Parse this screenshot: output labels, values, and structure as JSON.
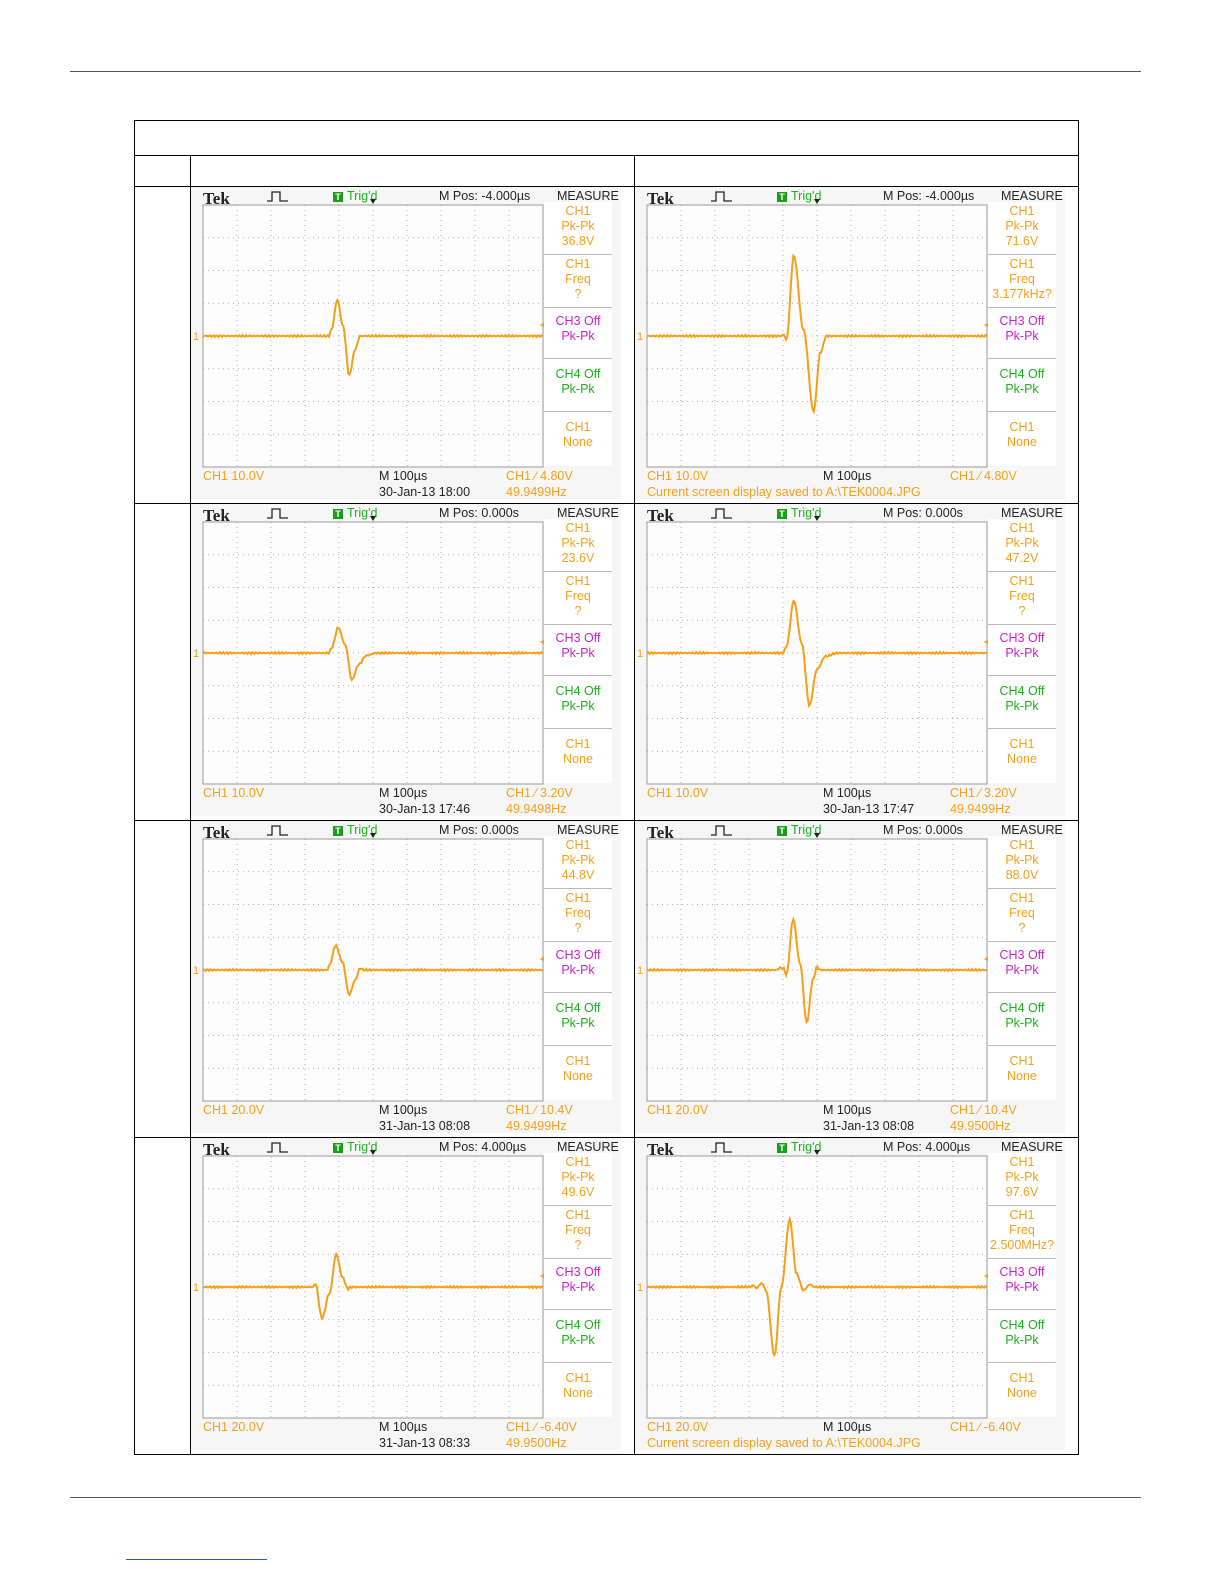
{
  "colors": {
    "trace": "#f5a01a",
    "ch3": "#cc22cc",
    "ch4": "#1ab21a",
    "grid": "#9a9a9a"
  },
  "scopes": [
    {
      "id": "1L",
      "mpos": "M Pos: -4.000µs",
      "pkpk": "36.8V",
      "freq_val": "?",
      "ch1_scale": "CH1  10.0V",
      "timebase": "M 100µs",
      "trig": "CH1 ∕ 4.80V",
      "date": "30-Jan-13 18:00",
      "hz": "49.9499Hz",
      "saved": "",
      "wave": {
        "t": [
          0,
          370,
          378,
          395,
          412,
          430,
          448,
          462,
          1000
        ],
        "v": [
          0,
          0,
          0.2,
          1.1,
          0.3,
          -1.2,
          -0.4,
          0,
          0
        ]
      }
    },
    {
      "id": "1R",
      "mpos": "M Pos: -4.000µs",
      "pkpk": "71.6V",
      "freq_val": "3.177kHz?",
      "ch1_scale": "CH1  10.0V",
      "timebase": "M 100µs",
      "trig": "CH1 ∕ 4.80V",
      "date": "",
      "hz": "",
      "saved": "Current screen display saved to A:\\TEK0004.JPG",
      "wave": {
        "t": [
          0,
          395,
          402,
          410,
          432,
          460,
          490,
          510,
          528,
          1000
        ],
        "v": [
          0,
          0,
          0.05,
          -0.12,
          2.45,
          0.2,
          -2.3,
          -0.5,
          0,
          0
        ]
      }
    },
    {
      "id": "2L",
      "mpos": "M Pos: 0.000s",
      "pkpk": "23.6V",
      "freq_val": "?",
      "ch1_scale": "CH1  10.0V",
      "timebase": "M 100µs",
      "trig": "CH1 ∕ 3.20V",
      "date": "30-Jan-13 17:46",
      "hz": "49.9498Hz",
      "saved": "",
      "wave": {
        "t": [
          0,
          370,
          378,
          398,
          418,
          438,
          458,
          480,
          510,
          1000
        ],
        "v": [
          0,
          0,
          0.15,
          0.78,
          0.25,
          -0.82,
          -0.35,
          -0.08,
          0,
          0
        ]
      }
    },
    {
      "id": "2R",
      "mpos": "M Pos: 0.000s",
      "pkpk": "47.2V",
      "freq_val": "?",
      "ch1_scale": "CH1  10.0V",
      "timebase": "M 100µs",
      "trig": "CH1 ∕ 3.20V",
      "date": "30-Jan-13 17:47",
      "hz": "49.9499Hz",
      "saved": "",
      "wave": {
        "t": [
          0,
          400,
          410,
          432,
          455,
          478,
          500,
          525,
          560,
          1000
        ],
        "v": [
          0,
          0,
          0.2,
          1.6,
          0.3,
          -1.6,
          -0.5,
          -0.1,
          0,
          0
        ]
      }
    },
    {
      "id": "3L",
      "mpos": "M Pos: 0.000s",
      "pkpk": "44.8V",
      "freq_val": "?",
      "ch1_scale": "CH1  20.0V",
      "timebase": "M 100µs",
      "trig": "CH1 ∕ 10.4V",
      "date": "31-Jan-13 08:08",
      "hz": "49.9499Hz",
      "saved": "",
      "wave": {
        "t": [
          0,
          365,
          372,
          390,
          410,
          430,
          448,
          462,
          472,
          1000
        ],
        "v": [
          0,
          0,
          0.15,
          0.75,
          0.25,
          -0.75,
          -0.3,
          0.05,
          0,
          0
        ]
      }
    },
    {
      "id": "3R",
      "mpos": "M Pos: 0.000s",
      "pkpk": "88.0V",
      "freq_val": "?",
      "ch1_scale": "CH1  20.0V",
      "timebase": "M 100µs",
      "trig": "CH1 ∕ 10.4V",
      "date": "31-Jan-13 08:08",
      "hz": "49.9500Hz",
      "saved": "",
      "wave": {
        "t": [
          0,
          380,
          392,
          402,
          410,
          430,
          450,
          470,
          488,
          500,
          510,
          1000
        ],
        "v": [
          0,
          0,
          0.07,
          0.04,
          -0.15,
          1.55,
          0.2,
          -1.6,
          -0.3,
          0.1,
          0,
          0
        ]
      }
    },
    {
      "id": "4L",
      "mpos": "M Pos: 4.000µs",
      "pkpk": "49.6V",
      "freq_val": "?",
      "ch1_scale": "CH1  20.0V",
      "timebase": "M 100µs",
      "trig": "CH1 ∕ -6.40V",
      "date": "31-Jan-13 08:33",
      "hz": "49.9500Hz",
      "saved": "",
      "wave": {
        "t": [
          0,
          325,
          330,
          350,
          372,
          392,
          410,
          426,
          436,
          1000
        ],
        "v": [
          0,
          0,
          0.12,
          -0.95,
          -0.2,
          1.0,
          0.3,
          -0.05,
          0,
          0
        ]
      }
    },
    {
      "id": "4R",
      "mpos": "M Pos: 4.000µs",
      "pkpk": "97.6V",
      "freq_val": "2.500MHz?",
      "ch1_scale": "CH1  20.0V",
      "timebase": "M 100µs",
      "trig": "CH1 ∕ -6.40V",
      "date": "",
      "hz": "",
      "saved": "Current screen display saved to A:\\TEK0004.JPG",
      "wave": {
        "t": [
          0,
          300,
          315,
          322,
          330,
          338,
          350,
          375,
          395,
          420,
          440,
          460,
          480,
          492,
          1000
        ],
        "v": [
          0,
          0,
          0.05,
          -0.05,
          0.05,
          0.12,
          -0.1,
          -2.1,
          0.0,
          2.05,
          0.4,
          -0.1,
          0.08,
          0,
          0
        ]
      }
    }
  ],
  "scope_common": {
    "brand": "Tek",
    "trig_badge": "T",
    "trig_label": "Trig'd",
    "measure_label": "MEASURE",
    "ch1": "CH1",
    "pkpk": "Pk-Pk",
    "freq": "Freq",
    "ch3_off": "CH3 Off",
    "ch4_off": "CH4 Off",
    "none": "None",
    "ref_marker": "1"
  }
}
